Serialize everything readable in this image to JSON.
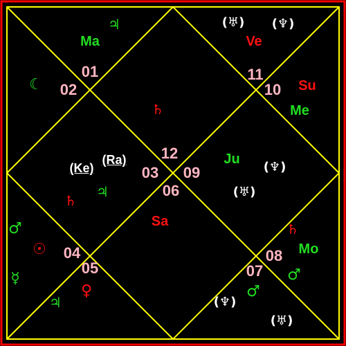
{
  "chart_title": "",
  "colors": {
    "frame": "#ff0000",
    "lines": "#ffff00",
    "house_numbers": "#ffb6c1",
    "green_planet": "#22dd22",
    "red_planet": "#ff1111",
    "white_text": "#ffffff"
  },
  "houses": [
    {
      "n": "12"
    },
    {
      "n": "01"
    },
    {
      "n": "02"
    },
    {
      "n": "03"
    },
    {
      "n": "04"
    },
    {
      "n": "05"
    },
    {
      "n": "06"
    },
    {
      "n": "07"
    },
    {
      "n": "08"
    },
    {
      "n": "09"
    },
    {
      "n": "10"
    },
    {
      "n": "11"
    }
  ],
  "labels": {
    "h01_ma": "Ma",
    "h01_jup": "♃",
    "h11_ura": "(♅)",
    "h11_nep": "(♆)",
    "h11_ve": "Ve",
    "h02_moon": "☾",
    "h10_su": "Su",
    "h10_me": "Me",
    "h12_sat": "♄",
    "h03_ke": "(Ke)",
    "h03_ra": "(Ra)",
    "h03_sat": "♄",
    "h03_jup": "♃",
    "h09_ju": "Ju",
    "h09_nep": "(♆)",
    "h09_ura": "(♅)",
    "h06_sa": "Sa",
    "h04_mars": "♂",
    "h04_sun": "☉",
    "h04_merc": "☿",
    "h05_jup": "♃",
    "h05_ven": "♀",
    "h08_sat": "♄",
    "h08_mo": "Mo",
    "h08_mars": "♂",
    "h07_mars": "♂",
    "h07_nep": "(♆)",
    "h07_ura": "(♅)"
  }
}
